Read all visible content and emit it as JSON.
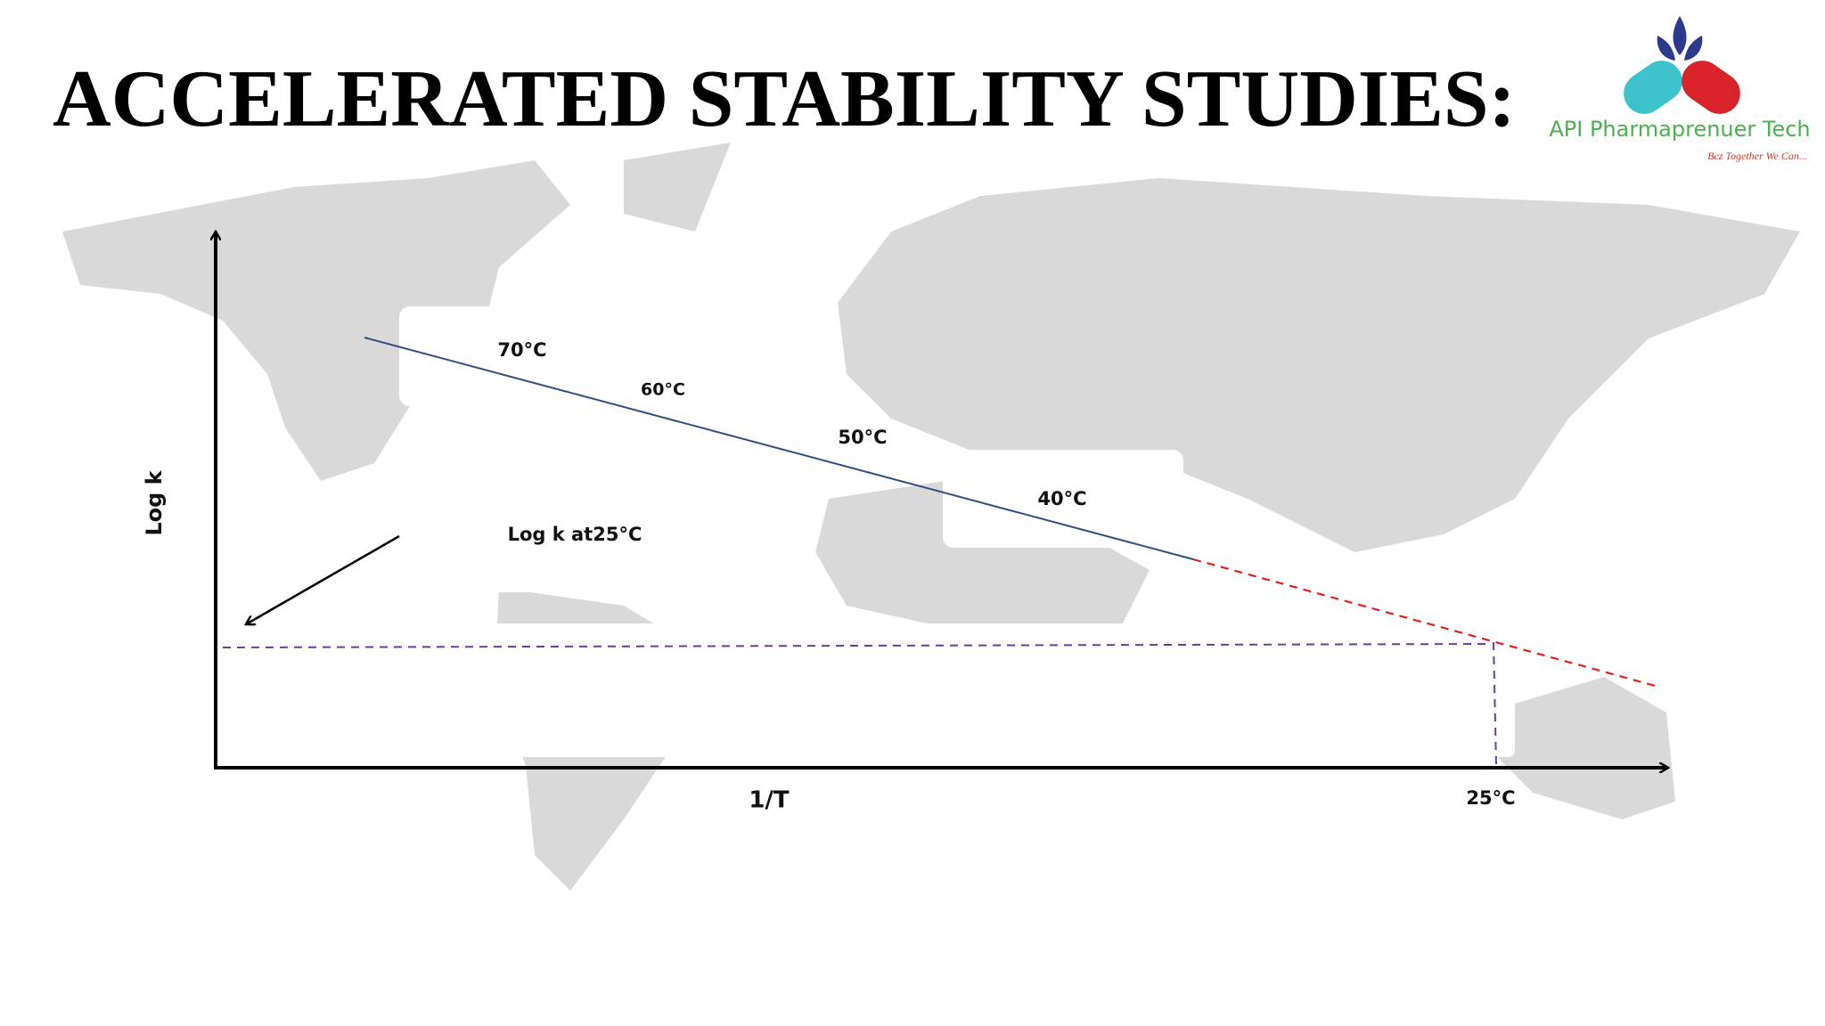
{
  "header": {
    "title": "ACCELERATED STABILITY STUDIES:",
    "logo_name": "API Pharmaprenuer Tech",
    "logo_tagline": "Bcz Together We Can..."
  },
  "diagram": {
    "y_axis_label": "Log k",
    "x_axis_label": "1/T",
    "x_marker_label": "25°C",
    "point_labels": [
      "70°C",
      "60°C",
      "50°C",
      "40°C"
    ],
    "annotation": "Log k at25°C"
  }
}
